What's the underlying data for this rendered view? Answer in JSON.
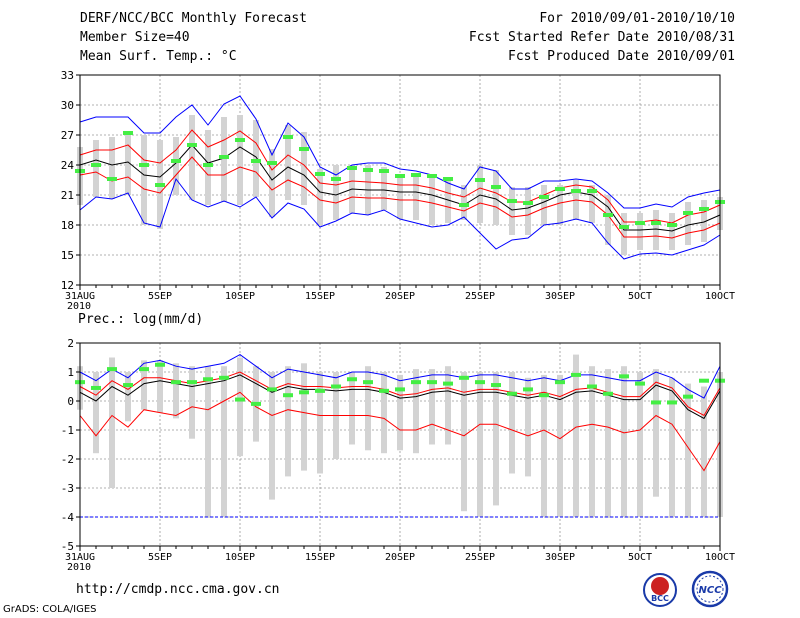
{
  "header": {
    "title": "DERF/NCC/BCC Monthly Forecast",
    "member_size": "Member Size=40",
    "variable": "Mean Surf. Temp.: °C",
    "forecast_period": "For 2010/09/01-2010/10/10",
    "started": "Fcst Started Refer Date 2010/08/31",
    "produced": "Fcst Produced Date 2010/09/01"
  },
  "footer": {
    "url": "http://cmdp.ncc.cma.gov.cn",
    "credit": "GrADS: COLA/IGES"
  },
  "logos": {
    "left": "BCC",
    "right": "NCC"
  },
  "colors": {
    "mean": "#000000",
    "spread": "#ff0000",
    "extreme": "#0000ff",
    "box": "#d3d3d3",
    "obs": "#44ee44",
    "grid": "#999999"
  },
  "chart_data": [
    {
      "type": "line",
      "title": "Mean Surf. Temp.: °C",
      "x_ticks": [
        "31AUG\n2010",
        "5SEP",
        "10SEP",
        "15SEP",
        "20SEP",
        "25SEP",
        "30SEP",
        "5OCT",
        "10OCT"
      ],
      "x_tick_days": [
        0,
        5,
        10,
        15,
        20,
        25,
        30,
        35,
        40
      ],
      "ylim": [
        12,
        33
      ],
      "yticks": [
        12,
        15,
        18,
        21,
        24,
        27,
        30,
        33
      ],
      "series": [
        {
          "name": "mean",
          "values": [
            24.0,
            24.5,
            24.0,
            24.3,
            23.0,
            22.8,
            24.2,
            26.0,
            24.2,
            24.7,
            25.8,
            24.8,
            22.5,
            23.8,
            23.0,
            21.3,
            21.0,
            21.6,
            21.5,
            21.5,
            21.3,
            21.3,
            21.0,
            20.5,
            20.0,
            21.0,
            20.6,
            19.5,
            19.7,
            20.3,
            21.0,
            21.3,
            21.0,
            19.8,
            17.5,
            17.5,
            17.6,
            17.4,
            18.0,
            18.3,
            19.0
          ]
        },
        {
          "name": "mean+sd",
          "values": [
            25.0,
            25.5,
            25.5,
            26.0,
            24.5,
            24.2,
            25.5,
            27.5,
            25.8,
            26.5,
            27.4,
            26.2,
            23.5,
            25.0,
            24.0,
            22.2,
            22.0,
            22.4,
            22.3,
            22.2,
            22.0,
            22.0,
            21.7,
            21.2,
            20.8,
            21.7,
            21.2,
            20.3,
            20.3,
            21.0,
            21.7,
            22.0,
            21.8,
            20.5,
            18.3,
            18.3,
            18.5,
            18.2,
            19.0,
            19.3,
            20.0
          ]
        },
        {
          "name": "mean-sd",
          "values": [
            23.0,
            23.3,
            22.4,
            22.8,
            21.6,
            21.2,
            23.0,
            24.8,
            23.0,
            23.0,
            23.8,
            23.3,
            21.5,
            22.5,
            21.8,
            20.5,
            20.2,
            20.8,
            20.7,
            20.7,
            20.5,
            20.5,
            20.2,
            19.8,
            19.4,
            20.2,
            19.8,
            18.8,
            19.0,
            19.7,
            20.2,
            20.5,
            20.3,
            19.0,
            16.8,
            16.8,
            16.9,
            16.7,
            17.2,
            17.5,
            18.2
          ]
        },
        {
          "name": "max",
          "values": [
            28.3,
            28.8,
            28.8,
            28.8,
            27.2,
            27.2,
            28.8,
            30.0,
            28.0,
            30.1,
            30.9,
            28.6,
            25.0,
            28.2,
            26.8,
            23.8,
            23.0,
            24.0,
            24.2,
            24.2,
            23.6,
            23.4,
            23.0,
            22.2,
            21.6,
            23.8,
            23.4,
            21.6,
            21.6,
            22.4,
            22.4,
            22.6,
            22.4,
            21.2,
            19.7,
            19.7,
            20.1,
            19.8,
            20.8,
            21.2,
            21.5
          ]
        },
        {
          "name": "min",
          "values": [
            19.5,
            20.8,
            20.6,
            21.2,
            18.2,
            17.8,
            22.6,
            20.5,
            19.8,
            20.4,
            19.8,
            20.8,
            18.7,
            20.2,
            19.6,
            17.8,
            18.4,
            19.2,
            19.0,
            19.5,
            18.6,
            18.2,
            17.8,
            18.0,
            18.8,
            17.2,
            15.6,
            16.5,
            16.7,
            18.0,
            18.2,
            18.6,
            18.2,
            16.2,
            14.6,
            15.1,
            15.2,
            15.0,
            15.5,
            16.0,
            17.0
          ]
        },
        {
          "name": "observed",
          "values": [
            23.4,
            24.0,
            22.6,
            27.2,
            24.0,
            22.0,
            24.4,
            26.0,
            24.0,
            24.8,
            26.5,
            24.4,
            24.2,
            26.8,
            25.6,
            23.1,
            22.6,
            23.7,
            23.5,
            23.4,
            22.9,
            23.0,
            22.9,
            22.6,
            20.0,
            22.5,
            21.8,
            20.4,
            20.2,
            20.8,
            21.6,
            21.4,
            21.4,
            19.0,
            17.8,
            18.2,
            18.2,
            18.0,
            19.2,
            19.6,
            20.3
          ]
        },
        {
          "name": "box_top",
          "values": [
            25.8,
            26.5,
            26.8,
            27.0,
            27.0,
            26.5,
            26.8,
            29.0,
            27.5,
            28.8,
            29.0,
            28.5,
            25.6,
            28.0,
            27.3,
            23.6,
            24.0,
            24.0,
            24.0,
            23.8,
            23.0,
            23.0,
            23.0,
            22.5,
            22.0,
            24.0,
            23.5,
            21.8,
            21.8,
            22.0,
            22.0,
            22.5,
            22.0,
            21.0,
            19.2,
            19.2,
            19.5,
            19.2,
            20.3,
            20.5,
            20.8
          ]
        },
        {
          "name": "box_bottom",
          "values": [
            20.0,
            20.8,
            20.6,
            21.0,
            18.0,
            17.6,
            21.0,
            20.5,
            20.0,
            20.3,
            20.0,
            20.8,
            18.8,
            20.5,
            20.0,
            18.0,
            18.5,
            19.2,
            19.0,
            19.5,
            18.6,
            18.5,
            18.0,
            18.2,
            18.5,
            18.2,
            18.0,
            17.0,
            17.0,
            18.0,
            18.0,
            18.5,
            18.2,
            16.0,
            15.0,
            15.5,
            15.5,
            15.5,
            16.0,
            16.3,
            17.5
          ]
        }
      ]
    },
    {
      "type": "line",
      "title": "Prec.: log(mm/d)",
      "x_ticks": [
        "31AUG\n2010",
        "5SEP",
        "10SEP",
        "15SEP",
        "20SEP",
        "25SEP",
        "30SEP",
        "5OCT",
        "10OCT"
      ],
      "x_tick_days": [
        0,
        5,
        10,
        15,
        20,
        25,
        30,
        35,
        40
      ],
      "ylim": [
        -5,
        2
      ],
      "yticks": [
        -5,
        -4,
        -3,
        -2,
        -1,
        0,
        1,
        2
      ],
      "series": [
        {
          "name": "mean",
          "values": [
            0.3,
            0.0,
            0.5,
            0.2,
            0.6,
            0.7,
            0.6,
            0.5,
            0.6,
            0.7,
            0.9,
            0.6,
            0.3,
            0.5,
            0.4,
            0.4,
            0.35,
            0.4,
            0.4,
            0.3,
            0.1,
            0.15,
            0.3,
            0.35,
            0.2,
            0.3,
            0.3,
            0.2,
            0.1,
            0.2,
            0.05,
            0.3,
            0.35,
            0.2,
            0.05,
            0.05,
            0.55,
            0.35,
            -0.3,
            -0.6,
            0.35
          ]
        },
        {
          "name": "mean+sd",
          "values": [
            0.5,
            0.2,
            0.7,
            0.4,
            0.8,
            0.8,
            0.7,
            0.6,
            0.7,
            0.8,
            1.0,
            0.7,
            0.4,
            0.6,
            0.5,
            0.5,
            0.45,
            0.5,
            0.5,
            0.4,
            0.2,
            0.25,
            0.4,
            0.45,
            0.3,
            0.4,
            0.4,
            0.3,
            0.2,
            0.3,
            0.15,
            0.4,
            0.45,
            0.3,
            0.15,
            0.15,
            0.65,
            0.45,
            -0.2,
            -0.5,
            0.45
          ]
        },
        {
          "name": "mean-sd",
          "values": [
            -0.5,
            -1.2,
            -0.5,
            -0.9,
            -0.3,
            -0.4,
            -0.5,
            -0.2,
            -0.3,
            0.0,
            0.3,
            -0.2,
            -0.5,
            -0.3,
            -0.4,
            -0.5,
            -0.5,
            -0.5,
            -0.5,
            -0.6,
            -1.0,
            -1.0,
            -0.8,
            -1.0,
            -1.2,
            -0.8,
            -0.8,
            -1.0,
            -1.2,
            -1.0,
            -1.3,
            -0.9,
            -0.8,
            -0.9,
            -1.1,
            -1.0,
            -0.5,
            -0.8,
            -1.6,
            -2.4,
            -1.4
          ]
        },
        {
          "name": "max",
          "values": [
            1.0,
            0.7,
            1.1,
            0.8,
            1.3,
            1.4,
            1.2,
            1.1,
            1.2,
            1.3,
            1.6,
            1.2,
            0.8,
            1.1,
            1.0,
            0.9,
            0.8,
            1.0,
            1.0,
            0.9,
            0.7,
            0.8,
            0.9,
            0.9,
            0.8,
            0.9,
            0.9,
            0.8,
            0.7,
            0.8,
            0.7,
            0.9,
            0.9,
            0.8,
            0.7,
            0.7,
            1.0,
            0.8,
            0.4,
            0.1,
            1.2
          ]
        },
        {
          "name": "min",
          "values": [
            -4,
            -4,
            -4,
            -4,
            -4,
            -4,
            -4,
            -4,
            -4,
            -4,
            -4,
            -4,
            -4,
            -4,
            -4,
            -4,
            -4,
            -4,
            -4,
            -4,
            -4,
            -4,
            -4,
            -4,
            -4,
            -4,
            -4,
            -4,
            -4,
            -4,
            -4,
            -4,
            -4,
            -4,
            -4,
            -4,
            -4,
            -4,
            -4,
            -4,
            -4
          ]
        },
        {
          "name": "observed",
          "values": [
            0.65,
            0.45,
            1.1,
            0.55,
            1.1,
            1.25,
            0.65,
            0.65,
            0.75,
            0.8,
            0.05,
            -0.1,
            0.4,
            0.2,
            0.3,
            0.35,
            0.5,
            0.75,
            0.65,
            0.35,
            0.4,
            0.65,
            0.65,
            0.6,
            0.8,
            0.65,
            0.55,
            0.25,
            0.4,
            0.2,
            0.65,
            0.9,
            0.5,
            0.25,
            0.85,
            0.6,
            -0.05,
            -0.05,
            0.15,
            0.7,
            0.7
          ]
        },
        {
          "name": "box_top",
          "values": [
            1.2,
            1.0,
            1.5,
            1.0,
            1.4,
            1.4,
            1.3,
            1.2,
            1.2,
            1.2,
            1.5,
            1.2,
            1.0,
            1.2,
            1.3,
            1.0,
            1.0,
            1.0,
            1.2,
            1.0,
            0.9,
            1.1,
            1.1,
            1.2,
            1.0,
            1.0,
            1.0,
            1.0,
            0.8,
            0.9,
            0.9,
            1.6,
            1.2,
            1.1,
            1.2,
            1.0,
            1.1,
            0.8,
            0.6,
            0.5,
            1.0
          ]
        },
        {
          "name": "box_bottom",
          "values": [
            -0.3,
            -1.8,
            -3.0,
            -0.7,
            -0.3,
            -0.4,
            -0.6,
            -1.3,
            -4.0,
            -4.0,
            -1.9,
            -1.4,
            -3.4,
            -2.6,
            -2.4,
            -2.5,
            -2.0,
            -1.5,
            -1.7,
            -1.8,
            -1.7,
            -1.8,
            -1.5,
            -1.5,
            -3.8,
            -4.0,
            -3.6,
            -2.5,
            -2.6,
            -4.0,
            -4.0,
            -4.0,
            -4.0,
            -4.0,
            -4.0,
            -4.0,
            -3.3,
            -4.0,
            -4.0,
            -4.0,
            -4.0
          ]
        }
      ]
    }
  ]
}
